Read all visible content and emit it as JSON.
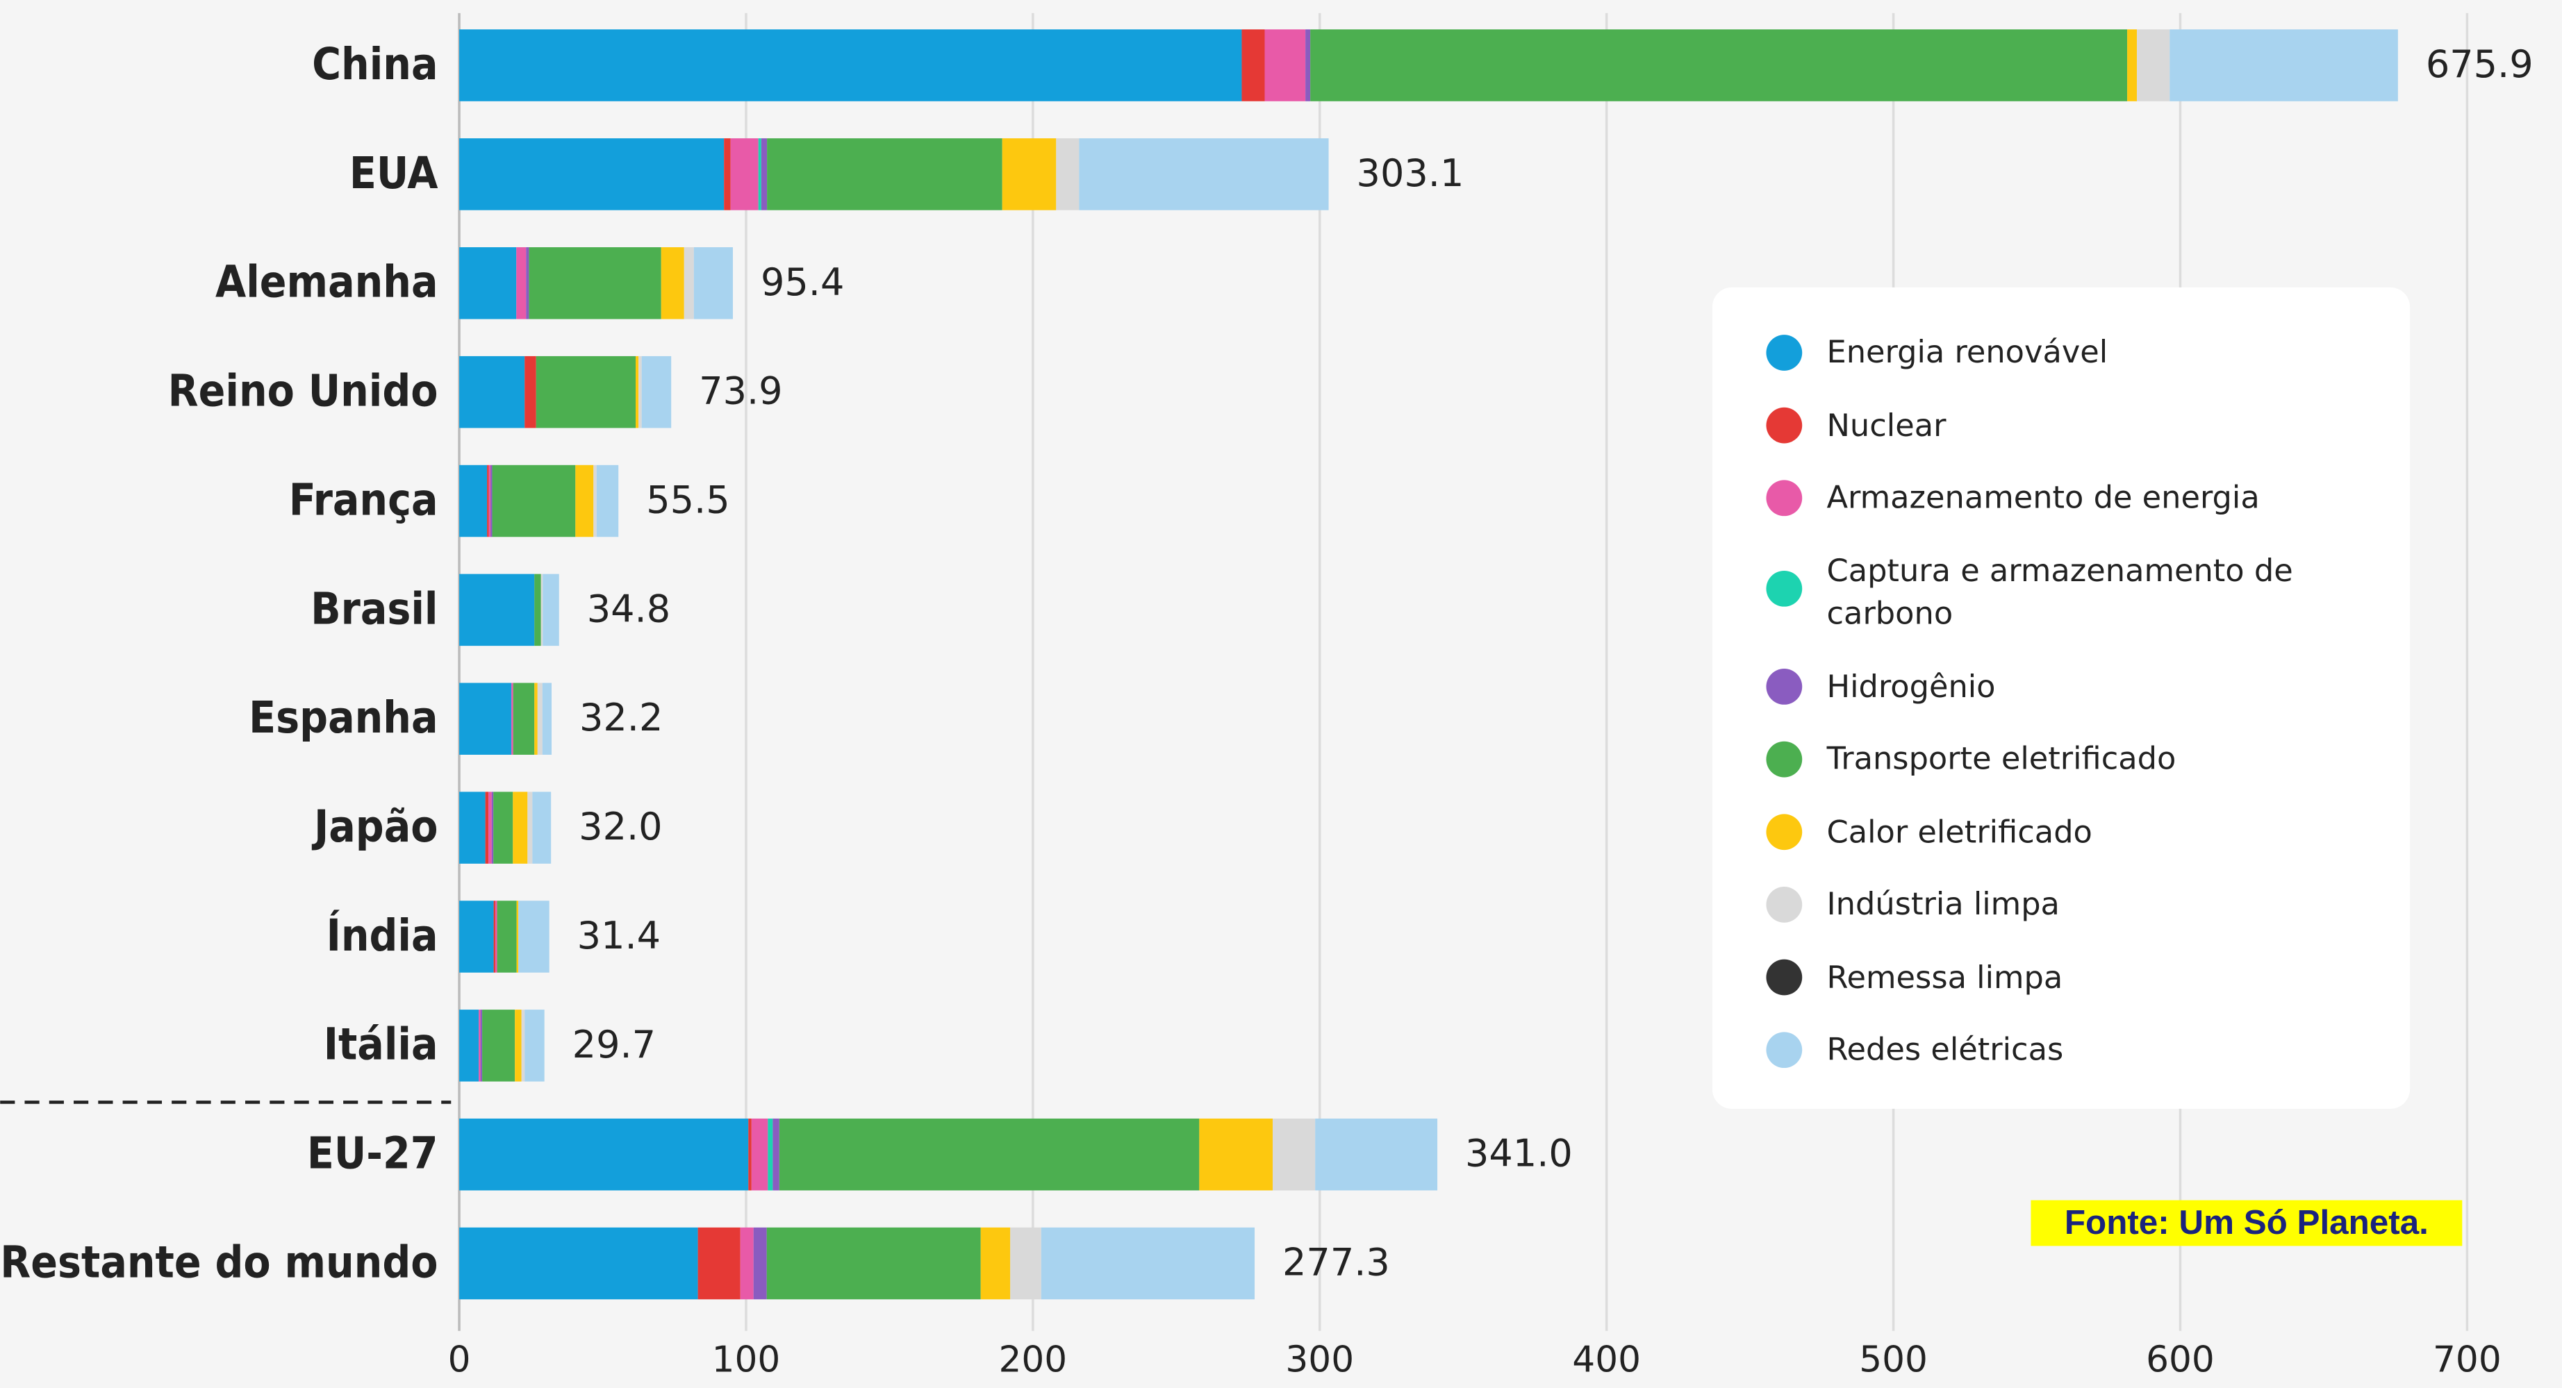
{
  "chart_data": {
    "type": "stacked-barh",
    "categories": [
      "China",
      "EUA",
      "Alemanha",
      "Reino Unido",
      "França",
      "Brasil",
      "Espanha",
      "Japão",
      "Índia",
      "Itália",
      "EU-27",
      "Restante do mundo"
    ],
    "series": [
      {
        "name": "Energia renovável",
        "color": "#139fdb",
        "values": [
          272.8,
          92.3,
          19.9,
          22.8,
          9.7,
          26.2,
          18.2,
          9.1,
          12.0,
          6.8,
          100.8,
          83.2
        ]
      },
      {
        "name": "Nuclear",
        "color": "#e53935",
        "values": [
          8.0,
          2.3,
          0,
          4.0,
          0.6,
          0,
          0,
          1.1,
          0.6,
          0,
          1.1,
          14.8
        ]
      },
      {
        "name": "Armazenamento de energia",
        "color": "#e85aa8",
        "values": [
          14.2,
          9.7,
          3.4,
          0,
          0.6,
          0,
          0.6,
          1.1,
          0.6,
          0.6,
          5.7,
          4.6
        ]
      },
      {
        "name": "Captura e armazenamento de carbono",
        "color": "#1dd3b0",
        "values": [
          0,
          1.0,
          0,
          0,
          0,
          0,
          0,
          0,
          0,
          0,
          1.7,
          0
        ]
      },
      {
        "name": "Hidrogênio",
        "color": "#8a5cc0",
        "values": [
          1.7,
          2.0,
          1.0,
          0,
          0.6,
          0,
          0,
          0.6,
          0,
          0.6,
          2.3,
          4.6
        ]
      },
      {
        "name": "Transporte eletrificado",
        "color": "#4caf50",
        "values": [
          284.8,
          82.0,
          46.1,
          34.7,
          29.0,
          2.3,
          7.4,
          6.8,
          6.8,
          11.4,
          146.4,
          74.6
        ]
      },
      {
        "name": "Calor eletrificado",
        "color": "#fdc80f",
        "values": [
          3.4,
          18.8,
          8.0,
          1.0,
          6.3,
          0,
          1.1,
          5.1,
          0.6,
          2.3,
          25.6,
          10.3
        ]
      },
      {
        "name": "Indústria limpa",
        "color": "#d9d9d9",
        "values": [
          11.4,
          8.0,
          3.4,
          1.1,
          1.1,
          0.6,
          1.7,
          1.7,
          0,
          1.1,
          14.8,
          10.8
        ]
      },
      {
        "name": "Remessa limpa",
        "color": "#333333",
        "values": [
          0,
          0,
          0,
          0,
          0,
          0,
          0,
          0,
          0,
          0,
          0,
          0
        ]
      },
      {
        "name": "Redes elétricas",
        "color": "#a8d3ef",
        "values": [
          79.6,
          87.0,
          13.6,
          10.3,
          7.6,
          5.7,
          3.2,
          6.5,
          10.8,
          6.9,
          42.6,
          74.4
        ]
      }
    ],
    "totals": [
      675.9,
      303.1,
      95.4,
      73.9,
      55.5,
      34.8,
      32.2,
      32.0,
      31.4,
      29.7,
      341.0,
      277.3
    ],
    "total_labels": [
      "675.9",
      "303.1",
      "95.4",
      "73.9",
      "55.5",
      "34.8",
      "32.2",
      "32.0",
      "31.4",
      "29.7",
      "341.0",
      "277.3"
    ],
    "xlim": [
      0,
      700
    ],
    "xticks": [
      0,
      100,
      200,
      300,
      400,
      500,
      600,
      700
    ],
    "grid": true,
    "source": "Fonte: Um Só Planeta."
  }
}
